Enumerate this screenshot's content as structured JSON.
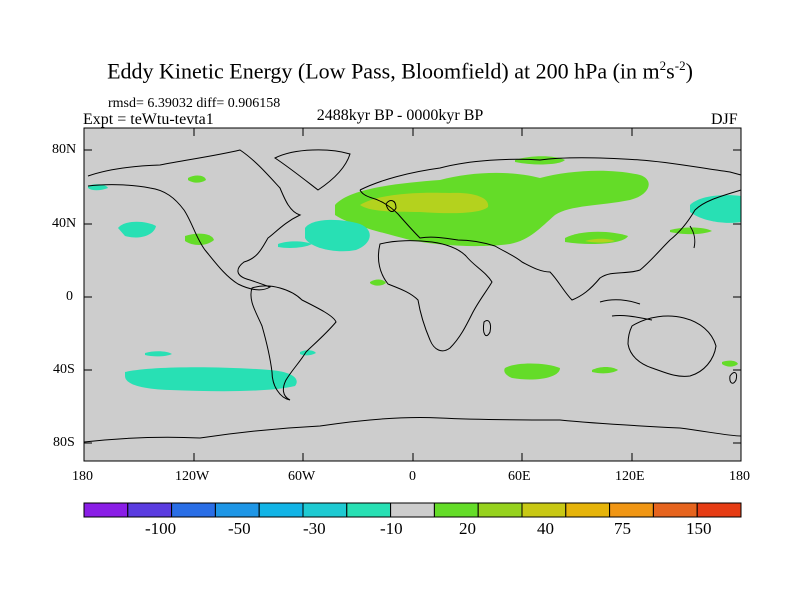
{
  "title": {
    "main": "Eddy Kinetic Energy (Low Pass, Bloomfield) at 200 hPa (in m",
    "unit_sup1": "2",
    "unit_mid": "s",
    "unit_sup2": "-2",
    "unit_close": ")"
  },
  "stats_line": "rmsd= 6.39032 diff= 0.906158",
  "experiment": "Expt = teWtu-tevta1",
  "period": "2488kyr BP - 0000kyr BP",
  "season": "DJF",
  "lat_labels": [
    "80N",
    "40N",
    "0",
    "40S",
    "80S"
  ],
  "lon_labels": [
    "180",
    "120W",
    "60W",
    "0",
    "60E",
    "120E",
    "180"
  ],
  "colorbar": {
    "colors": [
      "#8a1ee6",
      "#5a3ce0",
      "#2a6ee6",
      "#1e96e6",
      "#12b4e6",
      "#1ecad2",
      "#28e0b4",
      "#cdcdcd",
      "#64dc28",
      "#96d21e",
      "#c8c814",
      "#e6b40a",
      "#f09614",
      "#e6641e",
      "#e63c14"
    ],
    "labels": [
      "-100",
      "-50",
      "-30",
      "-10",
      "20",
      "40",
      "75",
      "150"
    ]
  },
  "colors": {
    "ocean_background": "#cdcdcd",
    "positive_light": "#64dc28",
    "positive_strong": "#b4d21e",
    "negative_light": "#28e0b4"
  }
}
